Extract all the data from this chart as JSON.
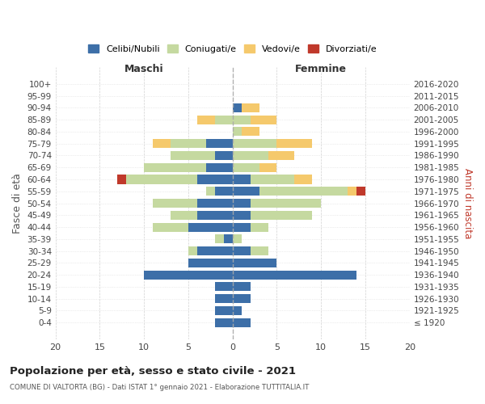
{
  "age_groups": [
    "100+",
    "95-99",
    "90-94",
    "85-89",
    "80-84",
    "75-79",
    "70-74",
    "65-69",
    "60-64",
    "55-59",
    "50-54",
    "45-49",
    "40-44",
    "35-39",
    "30-34",
    "25-29",
    "20-24",
    "15-19",
    "10-14",
    "5-9",
    "0-4"
  ],
  "birth_years": [
    "≤ 1920",
    "1921-1925",
    "1926-1930",
    "1931-1935",
    "1936-1940",
    "1941-1945",
    "1946-1950",
    "1951-1955",
    "1956-1960",
    "1961-1965",
    "1966-1970",
    "1971-1975",
    "1976-1980",
    "1981-1985",
    "1986-1990",
    "1991-1995",
    "1996-2000",
    "2001-2005",
    "2006-2010",
    "2011-2015",
    "2016-2020"
  ],
  "colors": {
    "celibi": "#3d6fa8",
    "coniugati": "#c5d9a0",
    "vedovi": "#f5c96c",
    "divorziati": "#c0392b"
  },
  "maschi": {
    "celibi": [
      0,
      0,
      0,
      0,
      0,
      3,
      2,
      3,
      4,
      2,
      4,
      4,
      5,
      1,
      4,
      5,
      10,
      2,
      2,
      2,
      2
    ],
    "coniugati": [
      0,
      0,
      0,
      2,
      0,
      4,
      5,
      7,
      8,
      1,
      5,
      3,
      4,
      1,
      1,
      0,
      0,
      0,
      0,
      0,
      0
    ],
    "vedovi": [
      0,
      0,
      0,
      2,
      0,
      2,
      0,
      0,
      0,
      0,
      0,
      0,
      0,
      0,
      0,
      0,
      0,
      0,
      0,
      0,
      0
    ],
    "divorziati": [
      0,
      0,
      0,
      0,
      0,
      0,
      0,
      0,
      1,
      0,
      0,
      0,
      0,
      0,
      0,
      0,
      0,
      0,
      0,
      0,
      0
    ]
  },
  "femmine": {
    "celibi": [
      0,
      0,
      1,
      0,
      0,
      0,
      0,
      0,
      2,
      3,
      2,
      2,
      2,
      0,
      2,
      5,
      14,
      2,
      2,
      1,
      2
    ],
    "coniugati": [
      0,
      0,
      0,
      2,
      1,
      5,
      4,
      3,
      5,
      10,
      8,
      7,
      2,
      1,
      2,
      0,
      0,
      0,
      0,
      0,
      0
    ],
    "vedovi": [
      0,
      0,
      2,
      3,
      2,
      4,
      3,
      2,
      2,
      1,
      0,
      0,
      0,
      0,
      0,
      0,
      0,
      0,
      0,
      0,
      0
    ],
    "divorziati": [
      0,
      0,
      0,
      0,
      0,
      0,
      0,
      0,
      0,
      1,
      0,
      0,
      0,
      0,
      0,
      0,
      0,
      0,
      0,
      0,
      0
    ]
  },
  "xlim": 20,
  "title": "Popolazione per età, sesso e stato civile - 2021",
  "subtitle": "COMUNE DI VALTORTA (BG) - Dati ISTAT 1° gennaio 2021 - Elaborazione TUTTITALIA.IT",
  "xlabel_left": "Maschi",
  "xlabel_right": "Femmine",
  "ylabel_left": "Fasce di età",
  "ylabel_right": "Anni di nascita",
  "legend_labels": [
    "Celibi/Nubili",
    "Coniugati/e",
    "Vedovi/e",
    "Divorziati/e"
  ],
  "background_color": "#ffffff",
  "grid_color": "#cccccc"
}
